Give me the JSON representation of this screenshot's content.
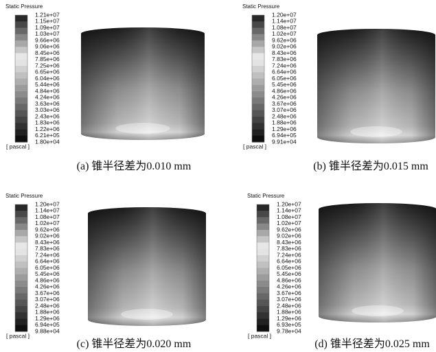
{
  "panels": [
    {
      "legend_title": "Static Pressure",
      "unit": "[ pascal ]",
      "caption": "(a) 锥半径差为0.010 mm",
      "labels": [
        "1.21e+07",
        "1.15e+07",
        "1.09e+07",
        "1.03e+07",
        "9.66e+06",
        "9.06e+06",
        "8.45e+06",
        "7.85e+06",
        "7.25e+06",
        "6.65e+06",
        "6.04e+06",
        "5.44e+06",
        "4.84e+06",
        "4.24e+06",
        "3.63e+06",
        "3.03e+06",
        "2.43e+06",
        "1.83e+06",
        "1.22e+06",
        "6.21e+05",
        "1.80e+04"
      ]
    },
    {
      "legend_title": "Static Pressure",
      "unit": "[ pascal ]",
      "caption": "(b) 锥半径差为0.015 mm",
      "labels": [
        "1.20e+07",
        "1.14e+07",
        "1.08e+07",
        "1.02e+07",
        "9.62e+06",
        "9.02e+06",
        "8.43e+06",
        "7.83e+06",
        "7.24e+06",
        "6.64e+06",
        "6.05e+06",
        "5.45e+06",
        "4.86e+06",
        "4.26e+06",
        "3.67e+06",
        "3.07e+06",
        "2.48e+06",
        "1.88e+06",
        "1.29e+06",
        "6.94e+05",
        "9.91e+04"
      ]
    },
    {
      "legend_title": "Static Pressure",
      "unit": "[ pascal ]",
      "caption": "(c) 锥半径差为0.020 mm",
      "labels": [
        "1.20e+07",
        "1.14e+07",
        "1.08e+07",
        "1.02e+07",
        "9.62e+06",
        "9.02e+06",
        "8.43e+06",
        "7.83e+06",
        "7.24e+06",
        "6.64e+06",
        "6.05e+06",
        "5.45e+06",
        "4.86e+06",
        "4.26e+06",
        "3.67e+06",
        "3.07e+06",
        "2.48e+06",
        "1.88e+06",
        "1.29e+06",
        "6.94e+05",
        "9.88e+04"
      ]
    },
    {
      "legend_title": "Static Pressure",
      "unit": "[ pascal ]",
      "caption": "(d) 锥半径差为0.025 mm",
      "labels": [
        "1.20e+07",
        "1.14e+07",
        "1.08e+07",
        "1.02e+07",
        "9.62e+06",
        "9.02e+06",
        "8.43e+06",
        "7.83e+06",
        "7.24e+06",
        "6.64e+06",
        "6.05e+06",
        "5.45e+06",
        "4.86e+06",
        "4.26e+06",
        "3.67e+06",
        "3.07e+06",
        "2.48e+06",
        "1.88e+06",
        "1.29e+06",
        "6.93e+05",
        "9.78e+04"
      ]
    }
  ]
}
